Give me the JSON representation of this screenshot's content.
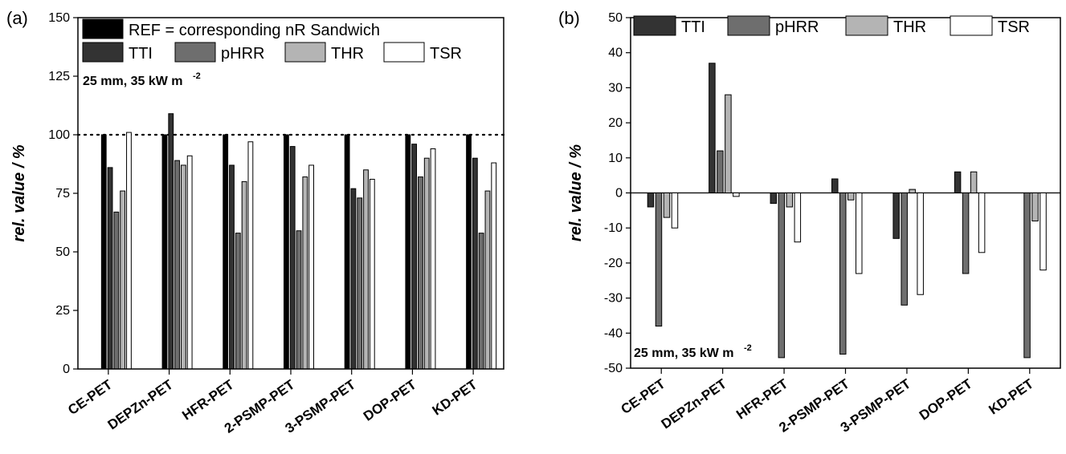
{
  "chart_data": [
    {
      "type": "bar",
      "panel_label": "(a)",
      "ylabel": "rel. value / %",
      "ylim": [
        0,
        150
      ],
      "yticks": [
        0,
        25,
        50,
        75,
        100,
        125,
        150
      ],
      "reference_line": 100,
      "annotation": {
        "main": "25 mm, 35 kW m",
        "sup": "-2"
      },
      "legend": {
        "placement": "top",
        "ref_label": "REF = corresponding nR Sandwich",
        "entries": [
          "TTI",
          "pHRR",
          "THR",
          "TSR"
        ]
      },
      "categories": [
        "CE-PET",
        "DEPZn-PET",
        "HFR-PET",
        "2-PSMP-PET",
        "3-PSMP-PET",
        "DOP-PET",
        "KD-PET"
      ],
      "series": [
        {
          "name": "REF = corresponding nR Sandwich",
          "color": "#000000",
          "values": [
            100,
            100,
            100,
            100,
            100,
            100,
            100
          ]
        },
        {
          "name": "TTI",
          "color": "#333333",
          "values": [
            86,
            109,
            87,
            95,
            77,
            96,
            90
          ]
        },
        {
          "name": "pHRR",
          "color": "#6e6e6e",
          "values": [
            67,
            89,
            58,
            59,
            73,
            82,
            58
          ]
        },
        {
          "name": "THR",
          "color": "#b4b4b4",
          "values": [
            76,
            87,
            80,
            82,
            85,
            90,
            76
          ]
        },
        {
          "name": "TSR",
          "color": "#ffffff",
          "values": [
            101,
            91,
            97,
            87,
            81,
            94,
            88
          ]
        }
      ]
    },
    {
      "type": "bar",
      "panel_label": "(b)",
      "ylabel": "rel. value / %",
      "ylim": [
        -50,
        50
      ],
      "yticks": [
        -50,
        -40,
        -30,
        -20,
        -10,
        0,
        10,
        20,
        30,
        40,
        50
      ],
      "annotation": {
        "main": "25 mm, 35 kW m",
        "sup": "-2"
      },
      "legend": {
        "placement": "top",
        "entries": [
          "TTI",
          "pHRR",
          "THR",
          "TSR"
        ]
      },
      "categories": [
        "CE-PET",
        "DEPZn-PET",
        "HFR-PET",
        "2-PSMP-PET",
        "3-PSMP-PET",
        "DOP-PET",
        "KD-PET"
      ],
      "series": [
        {
          "name": "TTI",
          "color": "#333333",
          "values": [
            -4,
            37,
            -3,
            4,
            -13,
            6,
            0
          ]
        },
        {
          "name": "pHRR",
          "color": "#6e6e6e",
          "values": [
            -38,
            12,
            -47,
            -46,
            -32,
            -23,
            -47
          ]
        },
        {
          "name": "THR",
          "color": "#b4b4b4",
          "values": [
            -7,
            28,
            -4,
            -2,
            1,
            6,
            -8
          ]
        },
        {
          "name": "TSR",
          "color": "#ffffff",
          "values": [
            -10,
            -1,
            -14,
            -23,
            -29,
            -17,
            -22
          ]
        }
      ]
    }
  ]
}
